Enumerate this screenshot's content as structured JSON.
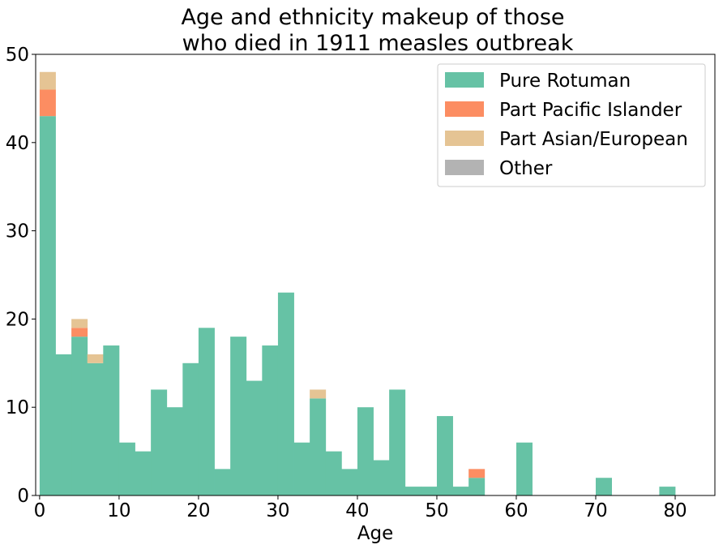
{
  "chart_data": {
    "type": "bar",
    "stacked": true,
    "title_lines": [
      "Age and ethnicity makeup of those",
      "who died in 1911 measles outbreak"
    ],
    "xlabel": "Age",
    "ylabel": "",
    "xlim": [
      -0.5,
      85
    ],
    "ylim": [
      0,
      50
    ],
    "xticks": [
      0,
      10,
      20,
      30,
      40,
      50,
      60,
      70,
      80
    ],
    "yticks": [
      0,
      10,
      20,
      30,
      40,
      50
    ],
    "bin_edges": [
      0,
      2,
      4,
      6,
      8,
      10,
      12,
      14,
      16,
      18,
      20,
      22,
      24,
      26,
      28,
      30,
      32,
      34,
      36,
      38,
      40,
      42,
      44,
      46,
      48,
      50,
      52,
      54,
      56,
      58,
      60,
      62,
      64,
      66,
      68,
      70,
      72,
      74,
      76,
      78,
      80,
      82
    ],
    "grid": false,
    "legend_position": "top-right",
    "series": [
      {
        "name": "Pure Rotuman",
        "color": "#66c2a5",
        "values": [
          43,
          16,
          18,
          15,
          17,
          6,
          5,
          12,
          10,
          15,
          19,
          3,
          18,
          13,
          17,
          23,
          6,
          11,
          5,
          3,
          10,
          4,
          12,
          1,
          1,
          9,
          1,
          2,
          0,
          0,
          6,
          0,
          0,
          0,
          0,
          2,
          0,
          0,
          0,
          1,
          0
        ]
      },
      {
        "name": "Part Pacific Islander",
        "color": "#fc8d62",
        "values": [
          3,
          0,
          1,
          0,
          0,
          0,
          0,
          0,
          0,
          0,
          0,
          0,
          0,
          0,
          0,
          0,
          0,
          0,
          0,
          0,
          0,
          0,
          0,
          0,
          0,
          0,
          0,
          1,
          0,
          0,
          0,
          0,
          0,
          0,
          0,
          0,
          0,
          0,
          0,
          0,
          0
        ]
      },
      {
        "name": "Part Asian/European",
        "color": "#e5c494",
        "values": [
          2,
          0,
          1,
          1,
          0,
          0,
          0,
          0,
          0,
          0,
          0,
          0,
          0,
          0,
          0,
          0,
          0,
          1,
          0,
          0,
          0,
          0,
          0,
          0,
          0,
          0,
          0,
          0,
          0,
          0,
          0,
          0,
          0,
          0,
          0,
          0,
          0,
          0,
          0,
          0,
          0
        ]
      },
      {
        "name": "Other",
        "color": "#b3b3b3",
        "values": [
          0,
          0,
          0,
          0,
          0,
          0,
          0,
          0,
          0,
          0,
          0,
          0,
          0,
          0,
          0,
          0,
          0,
          0,
          0,
          0,
          0,
          0,
          0,
          0,
          0,
          0,
          0,
          0,
          0,
          0,
          0,
          0,
          0,
          0,
          0,
          0,
          0,
          0,
          0,
          0,
          0
        ]
      }
    ]
  }
}
